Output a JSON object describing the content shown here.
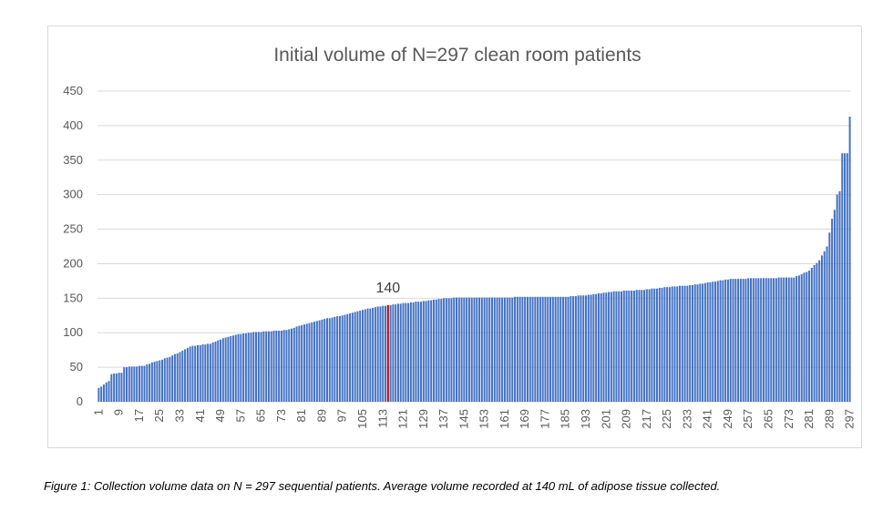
{
  "chart_data": {
    "type": "bar",
    "title": "Initial volume of N=297 clean room patients",
    "xlabel": "",
    "ylabel": "",
    "ylim": [
      0,
      450
    ],
    "yticks": [
      0,
      50,
      100,
      150,
      200,
      250,
      300,
      350,
      400,
      450
    ],
    "x_tick_labels": [
      "1",
      "9",
      "17",
      "25",
      "33",
      "41",
      "49",
      "57",
      "65",
      "73",
      "81",
      "89",
      "97",
      "105",
      "113",
      "121",
      "129",
      "137",
      "145",
      "153",
      "161",
      "169",
      "177",
      "185",
      "193",
      "201",
      "209",
      "217",
      "225",
      "233",
      "241",
      "249",
      "257",
      "265",
      "273",
      "281",
      "289",
      "297"
    ],
    "grid": "horizontal",
    "series_color": "#4472c4",
    "highlight_color": "#c00000",
    "highlight_index": 115,
    "annotation": "140",
    "knots": [
      [
        1,
        20
      ],
      [
        2,
        22
      ],
      [
        3,
        25
      ],
      [
        5,
        30
      ],
      [
        6,
        40
      ],
      [
        10,
        42
      ],
      [
        11,
        50
      ],
      [
        19,
        52
      ],
      [
        22,
        57
      ],
      [
        25,
        60
      ],
      [
        29,
        65
      ],
      [
        33,
        72
      ],
      [
        37,
        80
      ],
      [
        45,
        84
      ],
      [
        50,
        92
      ],
      [
        55,
        97
      ],
      [
        60,
        100
      ],
      [
        75,
        104
      ],
      [
        82,
        112
      ],
      [
        90,
        120
      ],
      [
        97,
        125
      ],
      [
        104,
        132
      ],
      [
        110,
        137
      ],
      [
        116,
        140
      ],
      [
        122,
        143
      ],
      [
        130,
        146
      ],
      [
        137,
        150
      ],
      [
        145,
        151
      ],
      [
        185,
        152
      ],
      [
        195,
        155
      ],
      [
        205,
        160
      ],
      [
        215,
        162
      ],
      [
        225,
        166
      ],
      [
        235,
        169
      ],
      [
        245,
        175
      ],
      [
        250,
        178
      ],
      [
        275,
        180
      ],
      [
        281,
        190
      ],
      [
        285,
        205
      ],
      [
        288,
        225
      ],
      [
        290,
        265
      ],
      [
        291,
        278
      ],
      [
        292,
        300
      ],
      [
        293,
        305
      ],
      [
        294,
        360
      ],
      [
        296,
        360
      ],
      [
        297,
        413
      ]
    ]
  },
  "caption": "Figure 1: Collection volume data on N = 297 sequential patients. Average volume recorded at 140 mL of adipose tissue collected."
}
